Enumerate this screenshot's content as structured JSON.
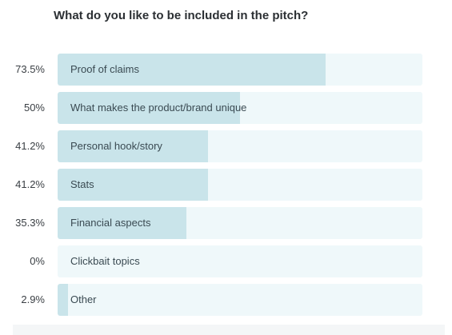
{
  "question": "What do you like to be included in the pitch?",
  "colors": {
    "bar_fill": "#c9e4ea",
    "bar_track": "#eff8fa"
  },
  "chart_data": {
    "type": "bar",
    "orientation": "horizontal",
    "title": "What do you like to be included in the pitch?",
    "categories": [
      "Proof of claims",
      "What makes the product/brand unique",
      "Personal hook/story",
      "Stats",
      "Financial aspects",
      "Clickbait topics",
      "Other"
    ],
    "values": [
      73.5,
      50,
      41.2,
      41.2,
      35.3,
      0,
      2.9
    ],
    "value_labels": [
      "73.5%",
      "50%",
      "41.2%",
      "41.2%",
      "35.3%",
      "0%",
      "2.9%"
    ],
    "xlim": [
      0,
      100
    ],
    "grid": false
  }
}
